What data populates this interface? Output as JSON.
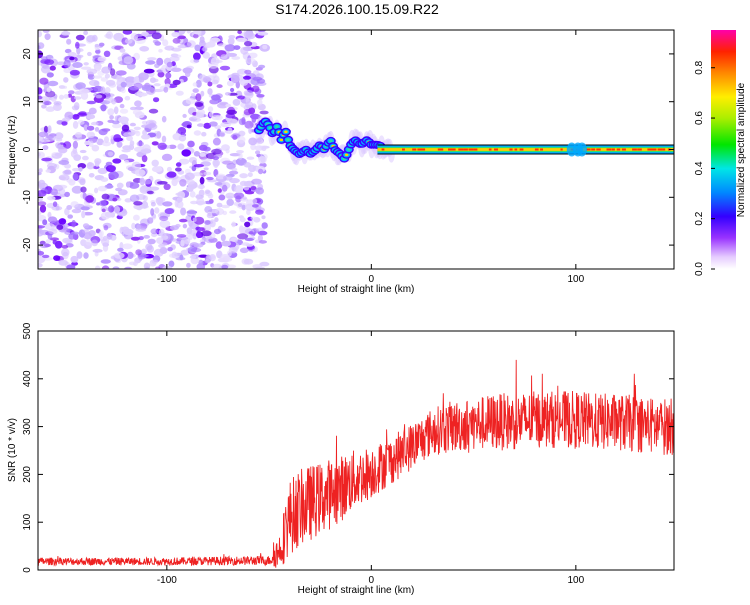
{
  "title": "S174.2026.100.15.09.R22",
  "chart_data": [
    {
      "type": "heatmap",
      "xlabel": "Height of straight line (km)",
      "ylabel": "Frequency (Hz)",
      "xlim": [
        -163,
        148
      ],
      "ylim": [
        -25,
        25
      ],
      "xticks": [
        -100,
        0,
        100
      ],
      "yticks": [
        -20,
        -10,
        0,
        10,
        20
      ],
      "xtick_labels": [
        "-100",
        "0",
        "100"
      ],
      "ytick_labels": [
        "-20",
        "-10",
        "0",
        "10",
        "20"
      ],
      "colorbar": {
        "label": "Normalized spectral amplitude",
        "range": [
          0,
          0.95
        ],
        "ticks": [
          0,
          0.2,
          0.4,
          0.6,
          0.8
        ],
        "tick_labels": [
          "0.0",
          "0.2",
          "0.4",
          "0.6",
          "0.8"
        ]
      },
      "noise_region_km": [
        -163,
        -55
      ],
      "signal_track": {
        "description_points_x": [
          -55,
          -52,
          -50,
          -48,
          -46,
          -44,
          -42,
          -40,
          -38,
          -35,
          -32,
          -30,
          -27,
          -25,
          -23,
          -20,
          -18,
          -15,
          -13,
          -10,
          -8,
          -5,
          -2,
          0,
          3,
          6,
          10,
          20,
          40,
          60,
          80,
          100,
          105,
          110,
          120,
          130,
          140,
          148
        ],
        "freq_hz": [
          4,
          6,
          5,
          3,
          5,
          2,
          4,
          1,
          0,
          -1,
          0,
          -1,
          0,
          1,
          0,
          2,
          0,
          -1,
          -2,
          1,
          2,
          1,
          2,
          1,
          1,
          0.5,
          0,
          0,
          0,
          0,
          0,
          0,
          0,
          0,
          0,
          0,
          0,
          0
        ]
      }
    },
    {
      "type": "line",
      "xlabel": "Height of straight line (km)",
      "ylabel": "SNR (10 * v/v)",
      "xlim": [
        -163,
        148
      ],
      "ylim": [
        0,
        500
      ],
      "xticks": [
        -100,
        0,
        100
      ],
      "yticks": [
        0,
        100,
        200,
        300,
        400,
        500
      ],
      "xtick_labels": [
        "-100",
        "0",
        "100"
      ],
      "ytick_labels": [
        "0",
        "100",
        "200",
        "300",
        "400",
        "500"
      ],
      "series": [
        {
          "name": "SNR",
          "color": "#ee2222",
          "envelope_x": [
            -163,
            -100,
            -50,
            -45,
            -40,
            -35,
            -30,
            -25,
            -20,
            -15,
            -10,
            -5,
            0,
            10,
            20,
            30,
            40,
            50,
            60,
            70,
            80,
            90,
            100,
            110,
            120,
            130,
            140,
            148
          ],
          "mean": [
            18,
            18,
            20,
            40,
            110,
            130,
            140,
            150,
            160,
            170,
            185,
            195,
            205,
            230,
            260,
            290,
            300,
            305,
            310,
            310,
            315,
            315,
            315,
            310,
            310,
            305,
            300,
            300
          ],
          "spread": [
            8,
            8,
            10,
            40,
            80,
            80,
            80,
            75,
            75,
            70,
            65,
            60,
            55,
            50,
            50,
            50,
            55,
            55,
            60,
            60,
            60,
            60,
            60,
            60,
            60,
            60,
            60,
            60
          ]
        }
      ]
    }
  ]
}
